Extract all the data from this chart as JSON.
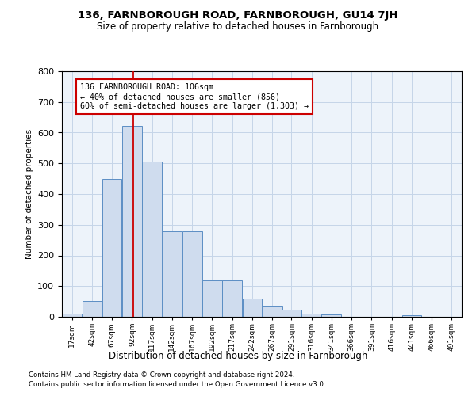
{
  "title1": "136, FARNBOROUGH ROAD, FARNBOROUGH, GU14 7JH",
  "title2": "Size of property relative to detached houses in Farnborough",
  "xlabel": "Distribution of detached houses by size in Farnborough",
  "ylabel": "Number of detached properties",
  "bar_color": "#cfdcee",
  "bar_edge_color": "#5b8ec4",
  "grid_color": "#c5d5e8",
  "background_color": "#edf3fa",
  "vline_x": 106,
  "vline_color": "#cc0000",
  "annotation_text": "136 FARNBOROUGH ROAD: 106sqm\n← 40% of detached houses are smaller (856)\n60% of semi-detached houses are larger (1,303) →",
  "annotation_box_facecolor": "#ffffff",
  "annotation_box_edgecolor": "#cc0000",
  "bin_edges": [
    17,
    42,
    67,
    92,
    117,
    142,
    167,
    192,
    217,
    242,
    267,
    291,
    316,
    341,
    366,
    391,
    416,
    441,
    466,
    491,
    516
  ],
  "bar_heights": [
    10,
    52,
    448,
    622,
    505,
    278,
    278,
    118,
    118,
    60,
    35,
    22,
    10,
    8,
    0,
    0,
    0,
    5,
    0,
    0
  ],
  "ylim": [
    0,
    800
  ],
  "yticks": [
    0,
    100,
    200,
    300,
    400,
    500,
    600,
    700,
    800
  ],
  "footnote1": "Contains HM Land Registry data © Crown copyright and database right 2024.",
  "footnote2": "Contains public sector information licensed under the Open Government Licence v3.0."
}
